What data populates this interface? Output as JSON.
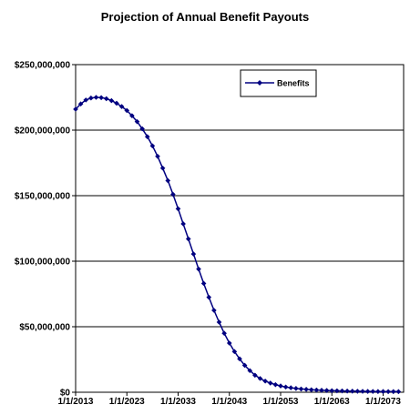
{
  "chart_data": {
    "type": "line",
    "title": "Projection of Annual Benefit Payouts",
    "xlabel": "",
    "ylabel": "",
    "x_tick_labels": [
      "1/1/2013",
      "1/1/2023",
      "1/1/2033",
      "1/1/2043",
      "1/1/2053",
      "1/1/2063",
      "1/1/2073"
    ],
    "y_tick_labels": [
      "$0",
      "$50,000,000",
      "$100,000,000",
      "$150,000,000",
      "$200,000,000",
      "$250,000,000"
    ],
    "ylim": [
      0,
      250000000
    ],
    "xlim": [
      "1/1/2013",
      "1/1/2077"
    ],
    "grid": "horizontal",
    "legend": "top-right",
    "series": [
      {
        "name": "Benefits",
        "color": "#000080",
        "marker": "diamond",
        "x": [
          "1/1/2013",
          "1/1/2014",
          "1/1/2015",
          "1/1/2016",
          "1/1/2017",
          "1/1/2018",
          "1/1/2019",
          "1/1/2020",
          "1/1/2021",
          "1/1/2022",
          "1/1/2023",
          "1/1/2024",
          "1/1/2025",
          "1/1/2026",
          "1/1/2027",
          "1/1/2028",
          "1/1/2029",
          "1/1/2030",
          "1/1/2031",
          "1/1/2032",
          "1/1/2033",
          "1/1/2034",
          "1/1/2035",
          "1/1/2036",
          "1/1/2037",
          "1/1/2038",
          "1/1/2039",
          "1/1/2040",
          "1/1/2041",
          "1/1/2042",
          "1/1/2043",
          "1/1/2044",
          "1/1/2045",
          "1/1/2046",
          "1/1/2047",
          "1/1/2048",
          "1/1/2049",
          "1/1/2050",
          "1/1/2051",
          "1/1/2052",
          "1/1/2053",
          "1/1/2054",
          "1/1/2055",
          "1/1/2056",
          "1/1/2057",
          "1/1/2058",
          "1/1/2059",
          "1/1/2060",
          "1/1/2061",
          "1/1/2062",
          "1/1/2063",
          "1/1/2064",
          "1/1/2065",
          "1/1/2066",
          "1/1/2067",
          "1/1/2068",
          "1/1/2069",
          "1/1/2070",
          "1/1/2071",
          "1/1/2072",
          "1/1/2073",
          "1/1/2074",
          "1/1/2075",
          "1/1/2076"
        ],
        "values": [
          216000000,
          220000000,
          223000000,
          224500000,
          225000000,
          224800000,
          224000000,
          222500000,
          220500000,
          218000000,
          215000000,
          211000000,
          206500000,
          201000000,
          195000000,
          188000000,
          180000000,
          171000000,
          161500000,
          151000000,
          140000000,
          128500000,
          117000000,
          105500000,
          94000000,
          83000000,
          72500000,
          62500000,
          53500000,
          45000000,
          37500000,
          31000000,
          25500000,
          20500000,
          16500000,
          13000000,
          10500000,
          8500000,
          7000000,
          5800000,
          4800000,
          4000000,
          3400000,
          2900000,
          2500000,
          2200000,
          1900000,
          1700000,
          1500000,
          1350000,
          1200000,
          1100000,
          1000000,
          900000,
          820000,
          750000,
          690000,
          640000,
          600000,
          560000,
          530000,
          500000,
          480000,
          460000
        ]
      }
    ]
  }
}
